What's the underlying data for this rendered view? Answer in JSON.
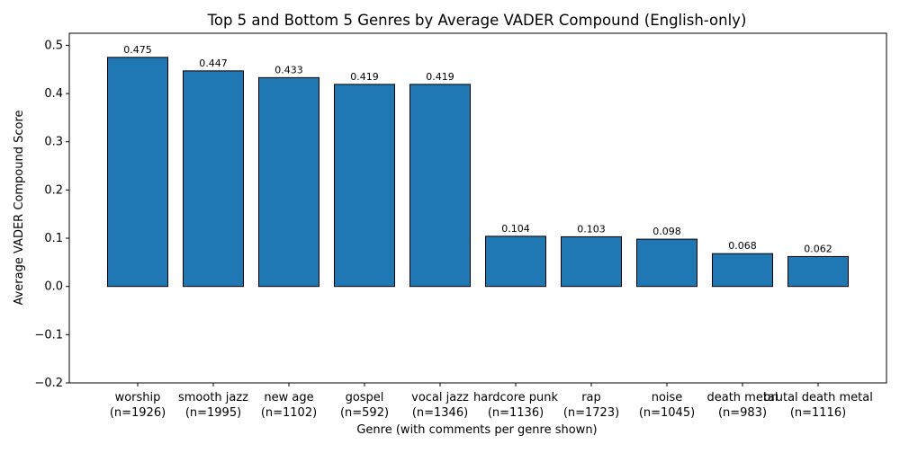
{
  "chart_data": {
    "type": "bar",
    "title": "Top 5 and Bottom 5 Genres by Average VADER Compound (English-only)",
    "xlabel": "Genre (with comments per genre shown)",
    "ylabel": "Average VADER Compound Score",
    "ylim": [
      -0.2,
      0.525
    ],
    "yticks": [
      -0.2,
      -0.1,
      0.0,
      0.1,
      0.2,
      0.3,
      0.4,
      0.5
    ],
    "ytick_labels": [
      "−0.2",
      "−0.1",
      "0.0",
      "0.1",
      "0.2",
      "0.3",
      "0.4",
      "0.5"
    ],
    "grid": false,
    "legend": "none",
    "bar_color": "#1f77b4",
    "bar_edge_color": "#000000",
    "categories": [
      {
        "name": "worship",
        "n": "(n=1926)"
      },
      {
        "name": "smooth jazz",
        "n": "(n=1995)"
      },
      {
        "name": "new age",
        "n": "(n=1102)"
      },
      {
        "name": "gospel",
        "n": "(n=592)"
      },
      {
        "name": "vocal jazz",
        "n": "(n=1346)"
      },
      {
        "name": "hardcore punk",
        "n": "(n=1136)"
      },
      {
        "name": "rap",
        "n": "(n=1723)"
      },
      {
        "name": "noise",
        "n": "(n=1045)"
      },
      {
        "name": "death metal",
        "n": "(n=983)"
      },
      {
        "name": "brutal death metal",
        "n": "(n=1116)"
      }
    ],
    "values": [
      0.475,
      0.447,
      0.433,
      0.419,
      0.419,
      0.104,
      0.103,
      0.098,
      0.068,
      0.062
    ],
    "value_labels": [
      "0.475",
      "0.447",
      "0.433",
      "0.419",
      "0.419",
      "0.104",
      "0.103",
      "0.098",
      "0.068",
      "0.062"
    ]
  }
}
